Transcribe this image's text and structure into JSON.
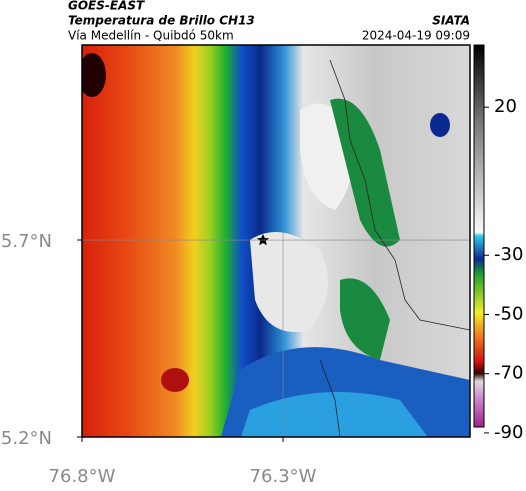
{
  "header": {
    "title": "GOES-EAST",
    "subtitle": "Temperatura de Brillo CH13",
    "route": "Vía Medellín - Quibdó 50km",
    "source": "SIATA",
    "datetime": "2024-04-19 09:09"
  },
  "map": {
    "xlim": [
      -76.8,
      -75.835
    ],
    "ylim": [
      5.2,
      6.195
    ],
    "xticks": [
      {
        "value": -76.8,
        "label": "76.8°W"
      },
      {
        "value": -76.3,
        "label": "76.3°W"
      }
    ],
    "yticks": [
      {
        "value": 5.7,
        "label": "5.7°N"
      },
      {
        "value": 5.2,
        "label": "5.2°N"
      }
    ]
  },
  "colorbar": {
    "clim": [
      -88,
      41
    ],
    "ticks": [
      20,
      -30,
      -50,
      -70,
      -90
    ]
  }
}
